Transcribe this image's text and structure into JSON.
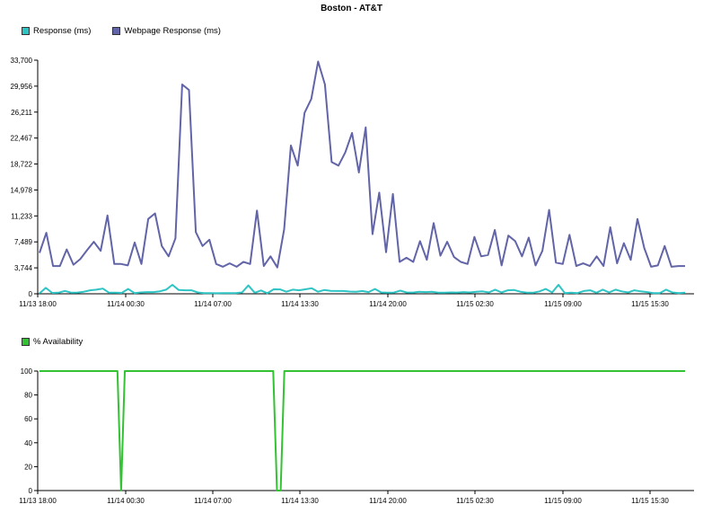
{
  "title": "Boston - AT&T",
  "chart_data": [
    {
      "type": "line",
      "legend_position": "top-left",
      "grid": false,
      "ylim": [
        0,
        33700
      ],
      "y_ticks": [
        "0",
        "3,744",
        "7,489",
        "11,233",
        "14,978",
        "18,722",
        "22,467",
        "26,211",
        "29,956",
        "33,700"
      ],
      "x_ticks": [
        "11/13 18:00",
        "11/14 00:30",
        "11/14 07:00",
        "11/14 13:30",
        "11/14 20:00",
        "11/15 02:30",
        "11/15 09:00",
        "11/15 15:30"
      ],
      "series": [
        {
          "name": "Response (ms)",
          "color": "#2ec4c4",
          "values": [
            60,
            850,
            130,
            150,
            420,
            170,
            180,
            300,
            500,
            600,
            750,
            160,
            150,
            130,
            700,
            100,
            200,
            250,
            250,
            350,
            600,
            1300,
            550,
            500,
            500,
            200,
            100,
            100,
            80,
            90,
            100,
            100,
            200,
            1200,
            150,
            480,
            80,
            650,
            640,
            300,
            600,
            500,
            650,
            800,
            300,
            550,
            420,
            400,
            400,
            330,
            300,
            400,
            250,
            700,
            200,
            150,
            180,
            450,
            200,
            180,
            300,
            250,
            280,
            150,
            150,
            200,
            180,
            250,
            200,
            300,
            350,
            200,
            600,
            200,
            500,
            550,
            300,
            150,
            150,
            350,
            700,
            200,
            1300,
            100,
            150,
            100,
            400,
            500,
            150,
            600,
            200,
            600,
            350,
            200,
            500,
            350,
            250,
            100,
            100,
            600,
            200,
            100,
            150
          ]
        },
        {
          "name": "Webpage Response (ms)",
          "color": "#6264a8",
          "values": [
            5900,
            8800,
            4000,
            4000,
            6400,
            4200,
            5000,
            6300,
            7500,
            6200,
            11300,
            4300,
            4300,
            4100,
            7400,
            4300,
            10800,
            11600,
            6900,
            5400,
            8000,
            30200,
            29400,
            8900,
            6900,
            7800,
            4300,
            3900,
            4400,
            3900,
            4600,
            4300,
            12000,
            4000,
            5400,
            3800,
            9300,
            21400,
            18500,
            26100,
            28100,
            33500,
            30200,
            19000,
            18500,
            20400,
            23200,
            17500,
            24000,
            8600,
            14600,
            6000,
            14400,
            4600,
            5200,
            4600,
            7600,
            4900,
            10200,
            5500,
            7500,
            5300,
            4600,
            4300,
            8200,
            5400,
            5600,
            9200,
            4100,
            8400,
            7600,
            5400,
            8100,
            4100,
            6200,
            12100,
            4500,
            4300,
            8500,
            4000,
            4400,
            4000,
            5400,
            4000,
            9600,
            4400,
            7300,
            4900,
            10800,
            6600,
            3900,
            4100,
            6900,
            3900,
            4000,
            4000
          ]
        }
      ]
    },
    {
      "type": "line",
      "legend_position": "top-left",
      "grid": false,
      "ylim": [
        0,
        100
      ],
      "y_ticks": [
        "0",
        "20",
        "40",
        "60",
        "80",
        "100"
      ],
      "x_ticks": [
        "11/13 18:00",
        "11/14 00:30",
        "11/14 07:00",
        "11/14 13:30",
        "11/14 20:00",
        "11/15 02:30",
        "11/15 09:00",
        "11/15 15:30"
      ],
      "series": [
        {
          "name": "% Availability",
          "color": "#33c233",
          "values": [
            100,
            100,
            100,
            100,
            100,
            100,
            100,
            100,
            100,
            100,
            100,
            100,
            100,
            100,
            100,
            100,
            100,
            100,
            100,
            100,
            100,
            100,
            0,
            100,
            100,
            100,
            100,
            100,
            100,
            100,
            100,
            100,
            100,
            100,
            100,
            100,
            100,
            100,
            100,
            100,
            100,
            100,
            100,
            100,
            100,
            100,
            100,
            100,
            100,
            100,
            100,
            100,
            100,
            100,
            100,
            100,
            100,
            100,
            100,
            100,
            100,
            100,
            100,
            100,
            0,
            0,
            100,
            100,
            100,
            100,
            100,
            100,
            100,
            100,
            100,
            100,
            100,
            100,
            100,
            100,
            100,
            100,
            100,
            100,
            100,
            100,
            100,
            100,
            100,
            100,
            100,
            100,
            100,
            100,
            100,
            100,
            100,
            100,
            100,
            100,
            100,
            100,
            100,
            100,
            100,
            100,
            100,
            100,
            100,
            100,
            100,
            100,
            100,
            100,
            100,
            100,
            100,
            100,
            100,
            100,
            100,
            100,
            100,
            100,
            100,
            100,
            100,
            100,
            100,
            100,
            100,
            100,
            100,
            100,
            100,
            100,
            100,
            100,
            100,
            100,
            100,
            100,
            100,
            100,
            100,
            100,
            100,
            100,
            100,
            100,
            100,
            100,
            100,
            100,
            100,
            100,
            100,
            100,
            100,
            100,
            100,
            100,
            100,
            100,
            100,
            100,
            100,
            100,
            100,
            100,
            100,
            100,
            100,
            100,
            100
          ]
        }
      ]
    }
  ]
}
